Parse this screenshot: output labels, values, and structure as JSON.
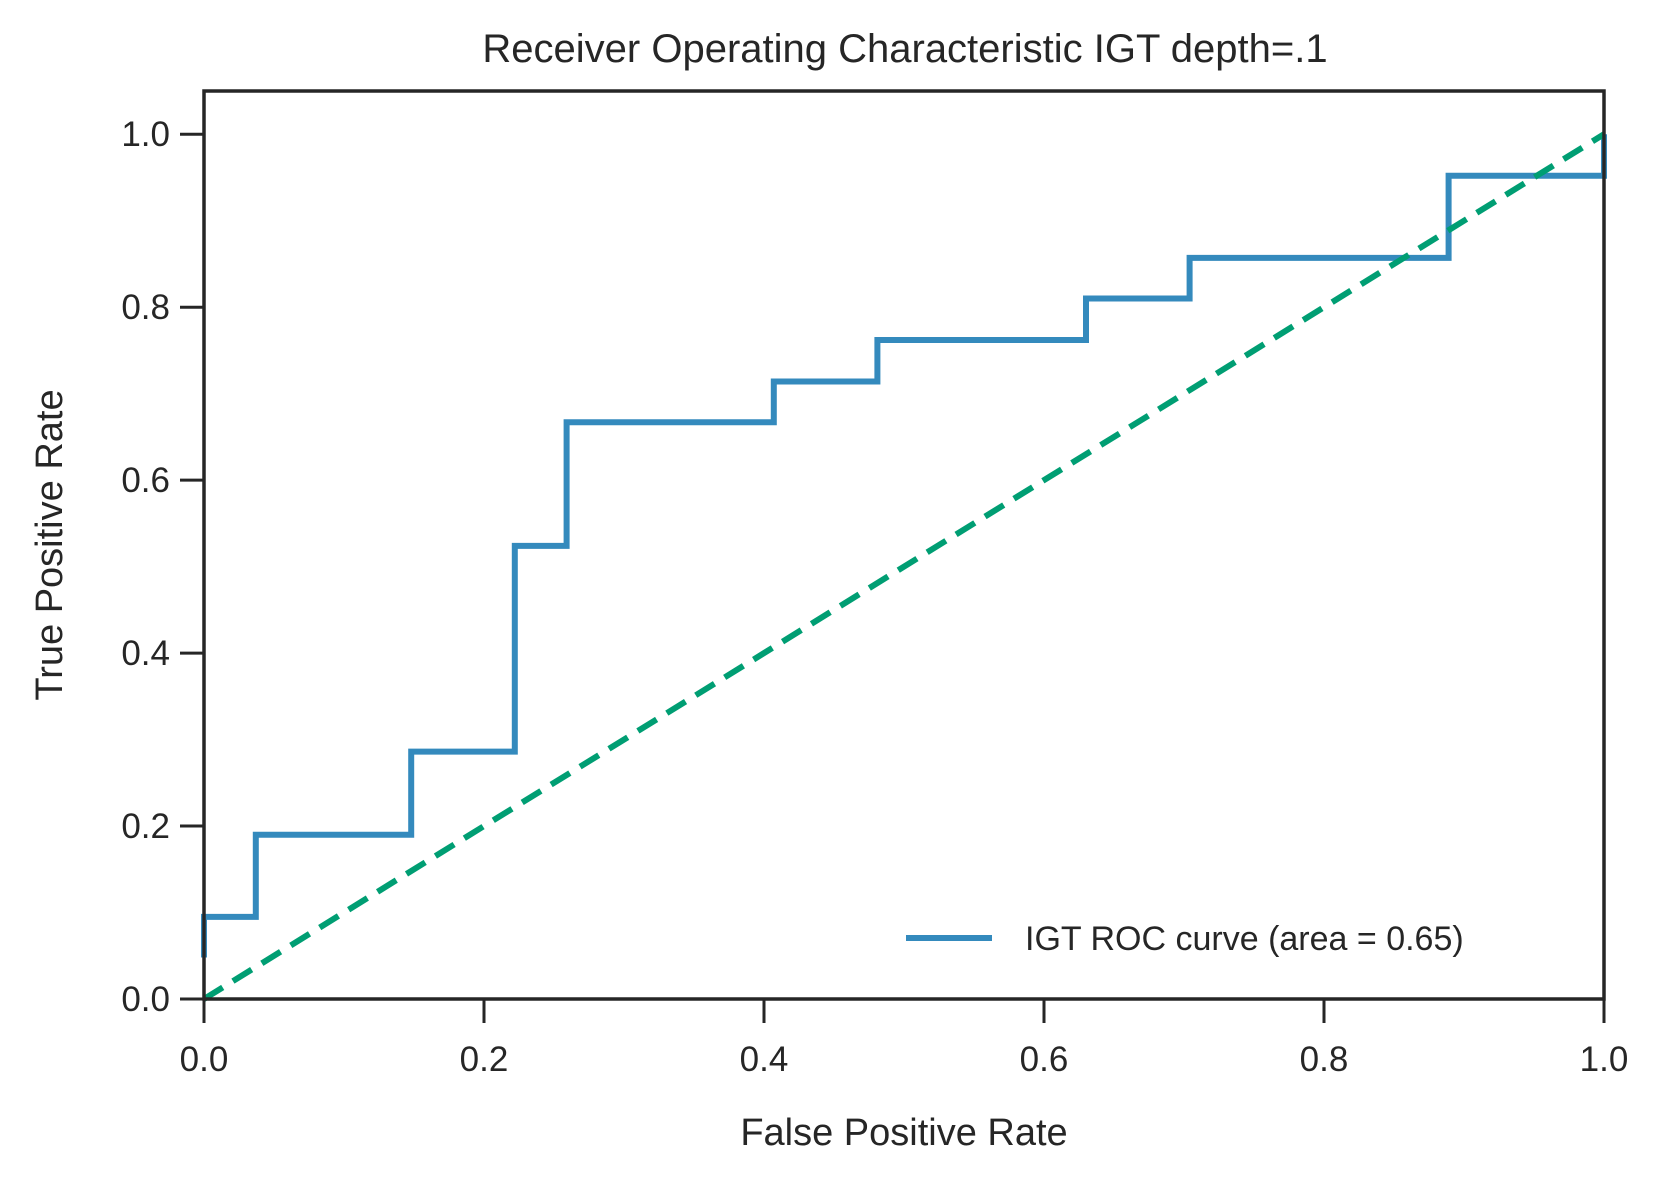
{
  "chart_data": {
    "type": "line",
    "title": "Receiver Operating Characteristic IGT depth=.1",
    "xlabel": "False Positive Rate",
    "ylabel": "True Positive Rate",
    "xlim": [
      0.0,
      1.0
    ],
    "ylim": [
      0.0,
      1.05
    ],
    "xticks": [
      "0.0",
      "0.2",
      "0.4",
      "0.6",
      "0.8",
      "1.0"
    ],
    "yticks": [
      "0.0",
      "0.2",
      "0.4",
      "0.6",
      "0.8",
      "1.0"
    ],
    "grid": false,
    "legend_position": "lower-right",
    "series": [
      {
        "name": "IGT ROC curve (area = 0.65)",
        "color": "#348abd",
        "style": "solid",
        "x": [
          0.0,
          0.0,
          0.037,
          0.037,
          0.148,
          0.148,
          0.222,
          0.222,
          0.259,
          0.259,
          0.407,
          0.407,
          0.481,
          0.481,
          0.63,
          0.63,
          0.704,
          0.704,
          0.889,
          0.889,
          1.0,
          1.0
        ],
        "y": [
          0.048,
          0.095,
          0.095,
          0.19,
          0.19,
          0.286,
          0.286,
          0.524,
          0.524,
          0.667,
          0.667,
          0.714,
          0.714,
          0.762,
          0.762,
          0.81,
          0.81,
          0.857,
          0.857,
          0.952,
          0.952,
          1.0
        ]
      },
      {
        "color": "#009e73",
        "style": "dashed",
        "x": [
          0.0,
          1.0
        ],
        "y": [
          0.0,
          1.0
        ]
      }
    ]
  }
}
